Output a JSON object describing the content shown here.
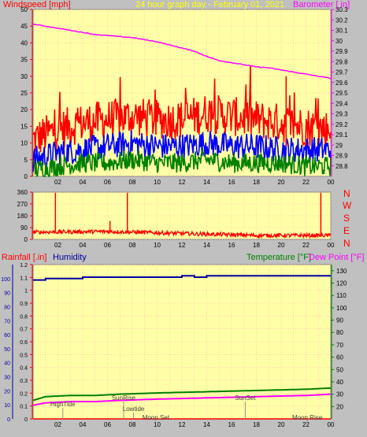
{
  "header": {
    "left_label": "Windspeed [mph]",
    "center_label": "24 hour graph day - February 01, 2021",
    "right_label": "Barometer [ in]"
  },
  "colors": {
    "plot_bg": "#ffffa8",
    "frame_bg": "#c0c0c0",
    "wind_gust": "#ff0000",
    "wind_speed": "#0000ff",
    "wind_avg": "#008000",
    "barometer": "#ff00ff",
    "direction": "#ff0000",
    "humidity": "#0000a0",
    "temperature": "#008000",
    "dewpoint": "#ff00ff",
    "grid": "#ffb0b0",
    "axis_red": "#ff0000",
    "axis_dark": "#800000"
  },
  "direction_panel": {
    "compass_labels": [
      "N",
      "W",
      "S",
      "E",
      "N"
    ]
  },
  "bottom_panel": {
    "left_label": "Rainfall [.in]",
    "humidity_label": "Humidity",
    "temperature_label": "Temperature [°F]",
    "dewpoint_label": "Dew Point [°F]",
    "astro_events": [
      {
        "label": "HighTide",
        "hour": 2.4,
        "row": 1
      },
      {
        "label": "SunRise",
        "hour": 7.3,
        "row": 0
      },
      {
        "label": "Lowtide",
        "hour": 8.1,
        "row": 2
      },
      {
        "label": "Moon Set",
        "hour": 9.9,
        "row": 3
      },
      {
        "label": "SunSet",
        "hour": 17.1,
        "row": 0
      },
      {
        "label": "Moon Rise",
        "hour": 22.1,
        "row": 3
      }
    ]
  },
  "chart_data": [
    {
      "type": "line",
      "title": "24 hour graph day - February 01, 2021",
      "ylabel": "Windspeed [mph]",
      "y2label": "Barometer [ in]",
      "x_tick_labels": [
        "02",
        "04",
        "06",
        "08",
        "10",
        "12",
        "14",
        "16",
        "18",
        "20",
        "22",
        "00"
      ],
      "xlim": [
        0,
        24
      ],
      "ylim": [
        0,
        50
      ],
      "y_ticks": [
        0,
        5,
        10,
        15,
        20,
        25,
        30,
        35,
        40,
        45,
        50
      ],
      "y2lim": [
        28.7,
        30.3
      ],
      "y2_ticks": [
        "28.8",
        "28.9",
        "29",
        "29.1",
        "29.2",
        "29.3",
        "29.4",
        "29.5",
        "29.6",
        "29.7",
        "29.8",
        "29.9",
        "30",
        "30.1",
        "30.2",
        "30.3"
      ],
      "series": [
        {
          "name": "Barometer",
          "axis": "right",
          "x": [
            0,
            1,
            2,
            3,
            4,
            5,
            6,
            7,
            8,
            9,
            10,
            11,
            12,
            13,
            14,
            15,
            16,
            17,
            18,
            19,
            20,
            21,
            22,
            23,
            24
          ],
          "values": [
            30.16,
            30.14,
            30.12,
            30.1,
            30.08,
            30.06,
            30.05,
            30.04,
            30.03,
            30.01,
            29.99,
            29.96,
            29.93,
            29.9,
            29.85,
            29.81,
            29.79,
            29.77,
            29.75,
            29.74,
            29.72,
            29.7,
            29.68,
            29.66,
            29.64
          ]
        },
        {
          "name": "Gust",
          "axis": "left",
          "x": [
            0,
            2,
            4,
            6,
            8,
            10,
            12,
            14,
            16,
            18,
            20,
            22,
            24
          ],
          "values": [
            11,
            14,
            16,
            17,
            18,
            17,
            17,
            19,
            18,
            17,
            16,
            15,
            14
          ]
        },
        {
          "name": "Speed",
          "axis": "left",
          "x": [
            0,
            2,
            4,
            6,
            8,
            10,
            12,
            14,
            16,
            18,
            20,
            22,
            24
          ],
          "values": [
            5,
            7,
            8,
            9,
            10,
            9,
            9,
            10,
            9,
            9,
            8,
            8,
            8
          ]
        },
        {
          "name": "Average",
          "axis": "left",
          "x": [
            0,
            2,
            4,
            6,
            8,
            10,
            12,
            14,
            16,
            18,
            20,
            22,
            24
          ],
          "values": [
            2,
            3,
            4,
            4,
            5,
            4,
            4,
            5,
            4,
            4,
            4,
            3,
            3
          ]
        }
      ]
    },
    {
      "type": "line",
      "ylim": [
        0,
        360
      ],
      "y_ticks": [
        0,
        90,
        180,
        270,
        360
      ],
      "xlim": [
        0,
        24
      ],
      "series": [
        {
          "name": "Direction",
          "baseline": [
            {
              "x": 0,
              "y": 55
            },
            {
              "x": 6,
              "y": 60
            },
            {
              "x": 12,
              "y": 45
            },
            {
              "x": 18,
              "y": 30
            },
            {
              "x": 24,
              "y": 30
            }
          ],
          "spikes": [
            {
              "x": 1.8,
              "y": 355
            },
            {
              "x": 7.6,
              "y": 355
            },
            {
              "x": 23.2,
              "y": 355
            },
            {
              "x": 6.2,
              "y": 140
            }
          ]
        }
      ]
    },
    {
      "type": "line",
      "ylabel": "Rainfall [.in] / Humidity",
      "y2label": "Temperature [°F] / Dew Point [°F]",
      "xlim": [
        0,
        24
      ],
      "ylim": [
        0,
        1.2
      ],
      "y_ticks": [
        "0",
        "0.1",
        "0.2",
        "0.3",
        "0.4",
        "0.5",
        "0.6",
        "0.7",
        "0.8",
        "0.9",
        "1",
        "1.1",
        "1.2"
      ],
      "ylim_humidity": [
        0,
        110
      ],
      "y_ticks_humidity": [
        0,
        10,
        20,
        30,
        40,
        50,
        60,
        70,
        80,
        90,
        100
      ],
      "y2lim": [
        10,
        135
      ],
      "y2_ticks": [
        20,
        30,
        40,
        50,
        60,
        70,
        80,
        90,
        100,
        110,
        120,
        130
      ],
      "series": [
        {
          "name": "Humidity",
          "axis": "humidity",
          "x": [
            0,
            1,
            3,
            4,
            5,
            10,
            12,
            13,
            14,
            24
          ],
          "values": [
            99,
            100,
            100,
            101,
            101,
            101,
            102,
            101,
            102,
            102
          ]
        },
        {
          "name": "Temperature",
          "axis": "right",
          "x": [
            0,
            1,
            3,
            5,
            7,
            10,
            14,
            18,
            22,
            24
          ],
          "values": [
            25,
            28,
            29,
            29,
            30,
            31,
            32,
            33,
            34,
            35
          ]
        },
        {
          "name": "Dew Point",
          "axis": "right",
          "x": [
            0,
            1,
            3,
            5,
            7,
            10,
            14,
            18,
            22,
            24
          ],
          "values": [
            21,
            23,
            24,
            24,
            25,
            26,
            27,
            28,
            29,
            30
          ]
        },
        {
          "name": "Rainfall",
          "axis": "left",
          "x": [
            0,
            24
          ],
          "values": [
            0,
            0
          ]
        }
      ]
    }
  ]
}
